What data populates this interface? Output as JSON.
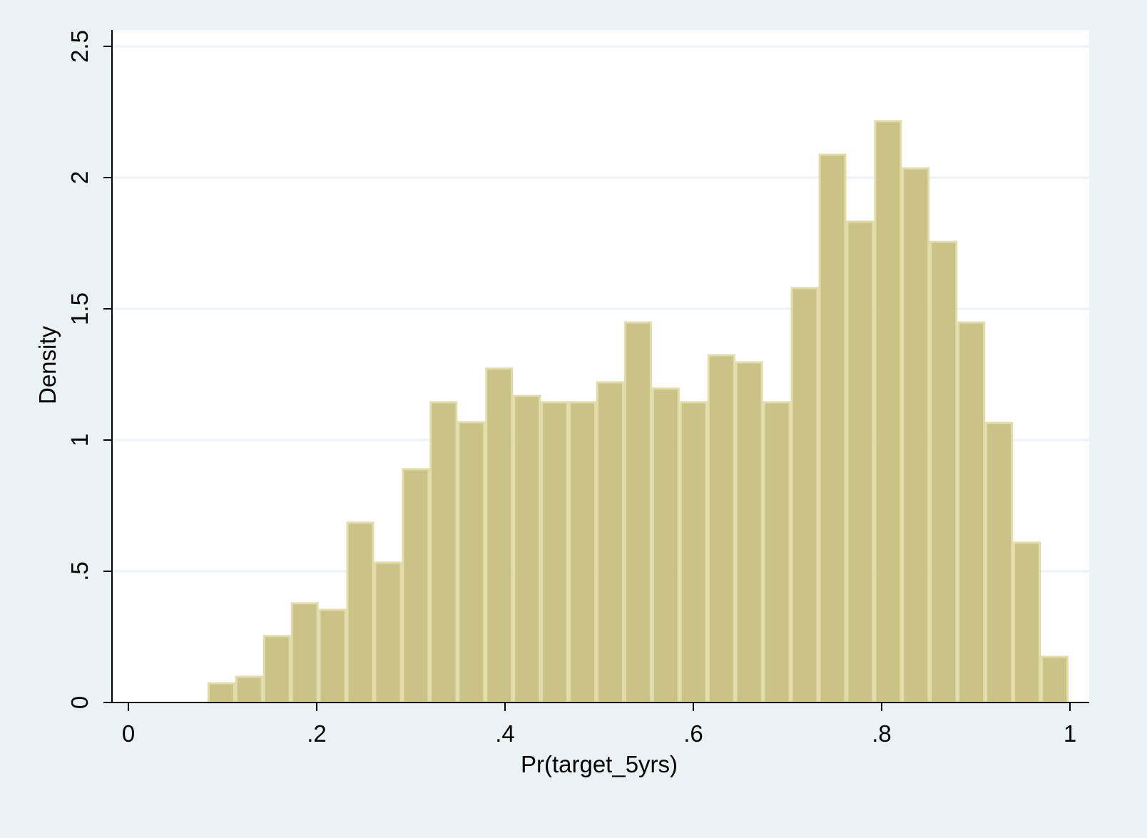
{
  "chart_data": {
    "type": "bar",
    "subtype": "histogram",
    "title": "",
    "xlabel": "Pr(target_5yrs)",
    "ylabel": "Density",
    "xlim": [
      0,
      1
    ],
    "ylim": [
      0,
      2.5
    ],
    "x_ticks": [
      0,
      0.2,
      0.4,
      0.6,
      0.8,
      1
    ],
    "x_tick_labels": [
      "0",
      ".2",
      ".4",
      ".6",
      ".8",
      "1"
    ],
    "y_ticks": [
      0,
      0.5,
      1,
      1.5,
      2,
      2.5
    ],
    "y_tick_labels": [
      "0",
      ".5",
      "1",
      "1.5",
      "2",
      "2.5"
    ],
    "grid": "horizontal",
    "bin_start": 0.084,
    "bin_width": 0.0295,
    "values": [
      0.073,
      0.098,
      0.253,
      0.378,
      0.353,
      0.685,
      0.533,
      0.889,
      1.144,
      1.068,
      1.272,
      1.168,
      1.144,
      1.144,
      1.22,
      1.448,
      1.196,
      1.144,
      1.323,
      1.296,
      1.144,
      1.579,
      2.087,
      1.832,
      2.215,
      2.035,
      1.755,
      1.448,
      1.065,
      0.609,
      0.174
    ],
    "colors": {
      "bar_fill": "#cbc288",
      "bar_outline": "#e2dcaa",
      "background": "#eaf2f3",
      "plot_background": "#ffffff",
      "grid": "#eaf2f3"
    }
  }
}
